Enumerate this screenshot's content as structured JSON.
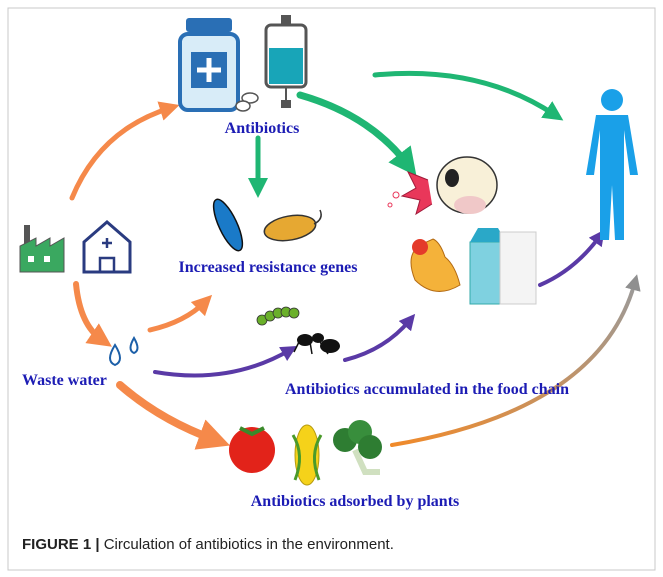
{
  "labels": {
    "antibiotics": "Antibiotics",
    "resistance": "Increased resistance genes",
    "waste_water": "Waste water",
    "food_chain": "Antibiotics accumulated in the food chain",
    "plants": "Antibiotics adsorbed by plants"
  },
  "caption": {
    "label": "FIGURE 1 |",
    "text": "Circulation of antibiotics in the environment."
  }
}
